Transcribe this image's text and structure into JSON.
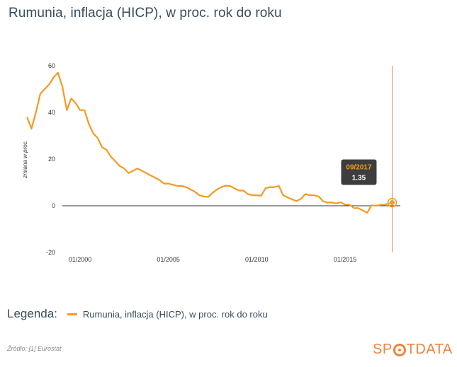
{
  "title": "Rumunia, inflacja (HICP), w proc. rok do roku",
  "legend": {
    "title": "Legenda:",
    "label": "Rumunia, inflacja (HICP), w proc. rok do roku"
  },
  "source": "Źródło: [1] Eurostat",
  "logo": {
    "part1": "SP",
    "part2": "TDATA"
  },
  "colors": {
    "series": "#f59a23",
    "cursor": "#e8845a",
    "text": "#3a4d5c",
    "tooltip_bg": "#3d3d3d"
  },
  "tooltip": {
    "date": "09/2017",
    "value": "1.35"
  },
  "chart_data": {
    "type": "line",
    "ylabel": "zmiana w proc.",
    "ylim": [
      -20,
      60
    ],
    "yticks": [
      "60",
      "40",
      "20",
      "0",
      "-20"
    ],
    "xticks": [
      "01/2000",
      "01/2005",
      "01/2010",
      "01/2015"
    ],
    "xlim": [
      "1996-12",
      "2017-09"
    ],
    "series": [
      {
        "name": "Rumunia, inflacja (HICP), w proc. rok do roku",
        "x": [
          "1997-01",
          "1997-04",
          "1997-07",
          "1997-10",
          "1998-01",
          "1998-04",
          "1998-07",
          "1998-10",
          "1999-01",
          "1999-04",
          "1999-07",
          "1999-10",
          "2000-01",
          "2000-04",
          "2000-07",
          "2000-10",
          "2001-01",
          "2001-04",
          "2001-07",
          "2001-10",
          "2002-01",
          "2002-04",
          "2002-07",
          "2002-10",
          "2003-01",
          "2003-04",
          "2003-07",
          "2003-10",
          "2004-01",
          "2004-04",
          "2004-07",
          "2004-10",
          "2005-01",
          "2005-04",
          "2005-07",
          "2005-10",
          "2006-01",
          "2006-04",
          "2006-07",
          "2006-10",
          "2007-01",
          "2007-04",
          "2007-07",
          "2007-10",
          "2008-01",
          "2008-04",
          "2008-07",
          "2008-10",
          "2009-01",
          "2009-04",
          "2009-07",
          "2009-10",
          "2010-01",
          "2010-04",
          "2010-07",
          "2010-10",
          "2011-01",
          "2011-04",
          "2011-07",
          "2011-10",
          "2012-01",
          "2012-04",
          "2012-07",
          "2012-10",
          "2013-01",
          "2013-04",
          "2013-07",
          "2013-10",
          "2014-01",
          "2014-04",
          "2014-07",
          "2014-10",
          "2015-01",
          "2015-04",
          "2015-07",
          "2015-10",
          "2016-01",
          "2016-04",
          "2016-07",
          "2016-10",
          "2017-01",
          "2017-04",
          "2017-09"
        ],
        "values": [
          38,
          33,
          40,
          48,
          50,
          52,
          55,
          57,
          51,
          41,
          46,
          44,
          41,
          41,
          35,
          31,
          29,
          25,
          24,
          21,
          19,
          17,
          16,
          14,
          15,
          16,
          15,
          14,
          13,
          12,
          11,
          9.5,
          9.5,
          9.0,
          8.5,
          8.5,
          8.0,
          7.0,
          6.0,
          4.5,
          4.0,
          3.8,
          5.5,
          7.0,
          8.0,
          8.6,
          8.5,
          7.4,
          6.5,
          6.5,
          5.0,
          4.5,
          4.5,
          4.3,
          7.5,
          8.0,
          8.0,
          8.5,
          4.5,
          3.5,
          2.8,
          2.0,
          3.0,
          5.0,
          4.5,
          4.5,
          4.0,
          2.0,
          1.3,
          1.4,
          1.0,
          1.5,
          0.5,
          0.5,
          -1.0,
          -1.0,
          -2.0,
          -3.0,
          0.2,
          0.0,
          0.4,
          0.5,
          1.35
        ]
      }
    ]
  }
}
